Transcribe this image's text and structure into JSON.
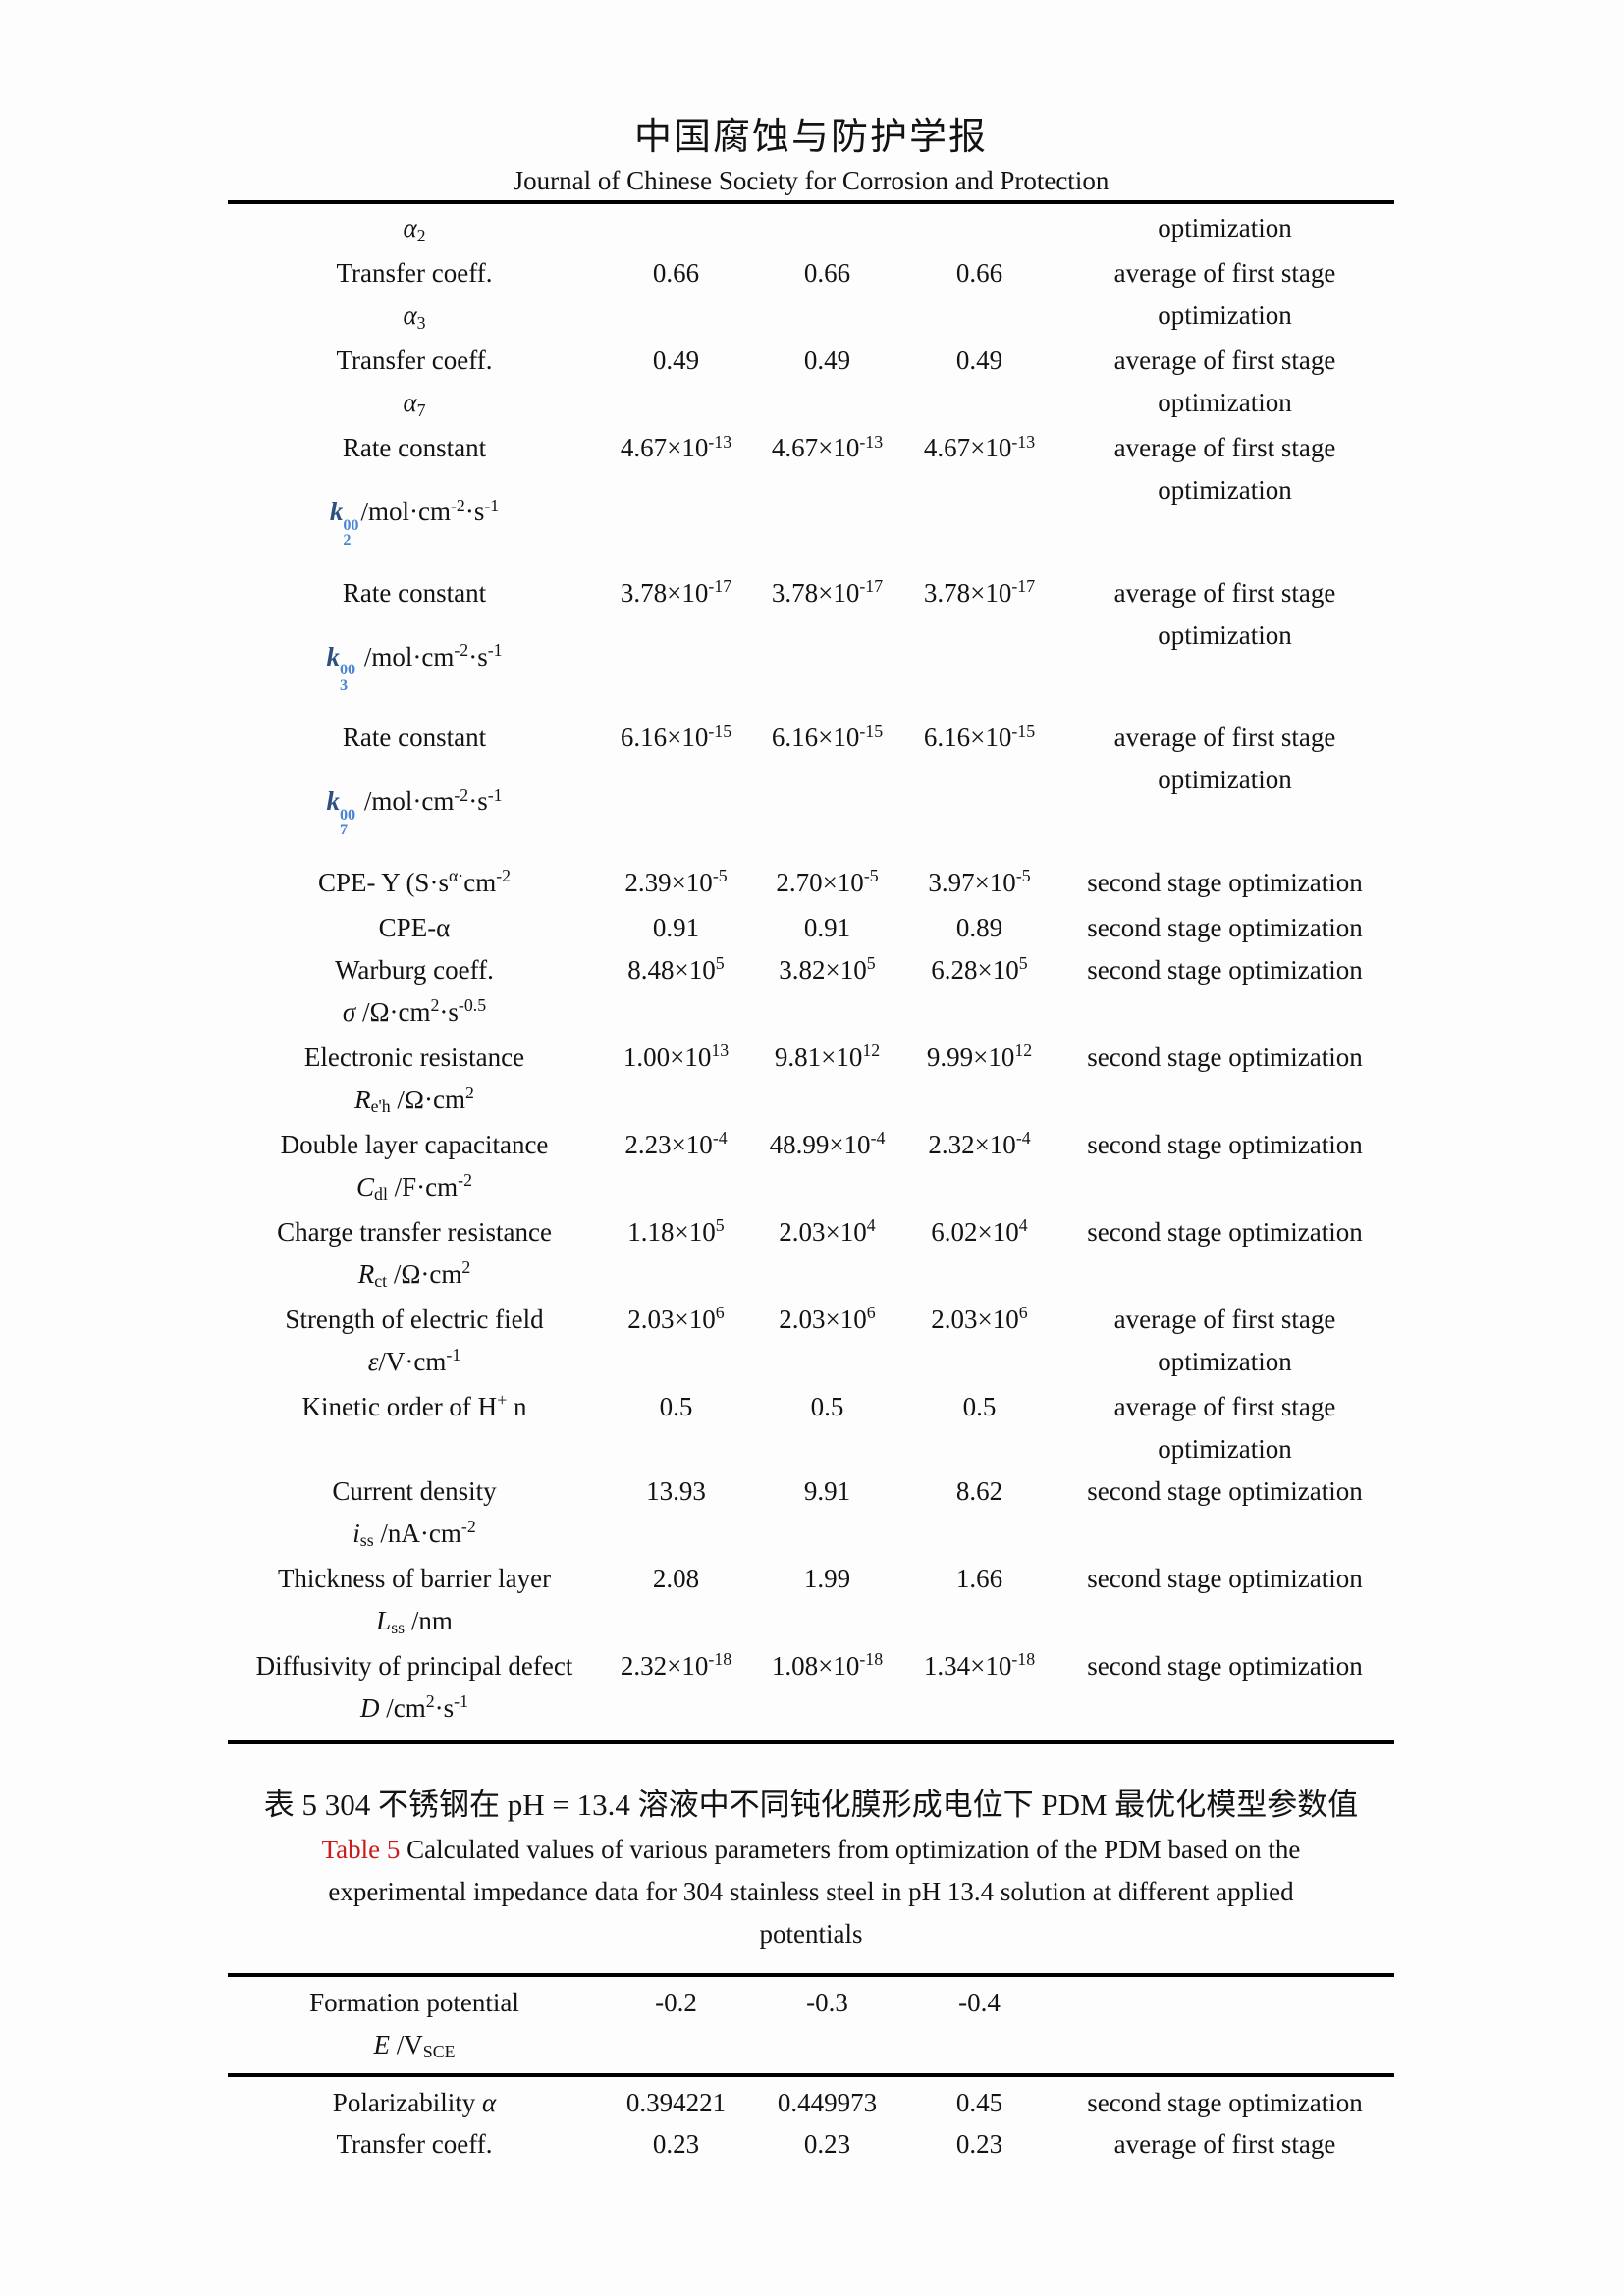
{
  "header": {
    "title_zh": "中国腐蚀与防护学报",
    "title_en": "Journal of Chinese Society for Corrosion and Protection"
  },
  "table1": {
    "carryover": {
      "name": [
        [
          "α",
          "gi"
        ],
        [
          "2",
          "sub"
        ]
      ],
      "desc": "optimization"
    },
    "rows": [
      {
        "name1": [
          [
            "Transfer coeff.",
            ""
          ]
        ],
        "name2": [
          [
            "α",
            "gi"
          ],
          [
            "3",
            "sub"
          ]
        ],
        "v1": [
          [
            "0.66",
            ""
          ]
        ],
        "v2": [
          [
            "0.66",
            ""
          ]
        ],
        "v3": [
          [
            "0.66",
            ""
          ]
        ],
        "desc": "average of first stage optimization"
      },
      {
        "name1": [
          [
            "Transfer coeff.",
            ""
          ]
        ],
        "name2": [
          [
            "α",
            "gi"
          ],
          [
            "7",
            "sub"
          ]
        ],
        "v1": [
          [
            "0.49",
            ""
          ]
        ],
        "v2": [
          [
            "0.49",
            ""
          ]
        ],
        "v3": [
          [
            "0.49",
            ""
          ]
        ],
        "desc": "average of first stage optimization"
      },
      {
        "name1": [
          [
            "Rate constant",
            ""
          ]
        ],
        "name2": [
          [
            "k",
            "kb"
          ],
          [
            "00|2",
            "stk"
          ],
          [
            "/mol·cm",
            ""
          ],
          [
            "-2",
            "sup"
          ],
          [
            "·s",
            ""
          ],
          [
            "-1",
            "sup"
          ]
        ],
        "v1": [
          [
            "4.67×10",
            ""
          ],
          [
            "-13",
            "sup"
          ]
        ],
        "v2": [
          [
            "4.67×10",
            ""
          ],
          [
            "-13",
            "sup"
          ]
        ],
        "v3": [
          [
            "4.67×10",
            ""
          ],
          [
            "-13",
            "sup"
          ]
        ],
        "desc": "average of first stage optimization"
      },
      {
        "name1": [
          [
            "Rate constant",
            ""
          ]
        ],
        "name2": [
          [
            "k",
            "kb"
          ],
          [
            "00|3",
            "stk"
          ],
          [
            " /mol·cm",
            ""
          ],
          [
            "-2",
            "sup"
          ],
          [
            "·s",
            ""
          ],
          [
            "-1",
            "sup"
          ]
        ],
        "v1": [
          [
            "3.78×10",
            ""
          ],
          [
            "-17",
            "sup"
          ]
        ],
        "v2": [
          [
            "3.78×10",
            ""
          ],
          [
            "-17",
            "sup"
          ]
        ],
        "v3": [
          [
            "3.78×10",
            ""
          ],
          [
            "-17",
            "sup"
          ]
        ],
        "desc": "average of first stage optimization"
      },
      {
        "name1": [
          [
            "Rate constant",
            ""
          ]
        ],
        "name2": [
          [
            "k",
            "kb"
          ],
          [
            "00|7",
            "stk"
          ],
          [
            " /mol·cm",
            ""
          ],
          [
            "-2",
            "sup"
          ],
          [
            "·s",
            ""
          ],
          [
            "-1",
            "sup"
          ]
        ],
        "v1": [
          [
            "6.16×10",
            ""
          ],
          [
            "-15",
            "sup"
          ]
        ],
        "v2": [
          [
            "6.16×10",
            ""
          ],
          [
            "-15",
            "sup"
          ]
        ],
        "v3": [
          [
            "6.16×10",
            ""
          ],
          [
            "-15",
            "sup"
          ]
        ],
        "desc": "average of first stage optimization"
      },
      {
        "name1": [
          [
            "CPE- Y (S·s",
            ""
          ],
          [
            "α·",
            "sup"
          ],
          [
            "cm",
            ""
          ],
          [
            "-2",
            "sup"
          ]
        ],
        "v1": [
          [
            "2.39×10",
            ""
          ],
          [
            "-5",
            "sup"
          ]
        ],
        "v2": [
          [
            "2.70×10",
            ""
          ],
          [
            "-5",
            "sup"
          ]
        ],
        "v3": [
          [
            "3.97×10",
            ""
          ],
          [
            "-5",
            "sup"
          ]
        ],
        "desc": "second stage optimization"
      },
      {
        "name1": [
          [
            "CPE-α",
            ""
          ]
        ],
        "v1": [
          [
            "0.91",
            ""
          ]
        ],
        "v2": [
          [
            "0.91",
            ""
          ]
        ],
        "v3": [
          [
            "0.89",
            ""
          ]
        ],
        "desc": "second stage optimization"
      },
      {
        "name1": [
          [
            "Warburg coeff.",
            ""
          ]
        ],
        "name2": [
          [
            "σ",
            "gi"
          ],
          [
            " /Ω·cm",
            ""
          ],
          [
            "2",
            "sup"
          ],
          [
            "·s",
            ""
          ],
          [
            "-0.5",
            "sup"
          ]
        ],
        "v1": [
          [
            "8.48×10",
            ""
          ],
          [
            "5",
            "sup"
          ]
        ],
        "v2": [
          [
            "3.82×10",
            ""
          ],
          [
            "5",
            "sup"
          ]
        ],
        "v3": [
          [
            "6.28×10",
            ""
          ],
          [
            "5",
            "sup"
          ]
        ],
        "desc": "second stage optimization"
      },
      {
        "name1": [
          [
            "Electronic resistance",
            ""
          ]
        ],
        "name2": [
          [
            "R",
            "i"
          ],
          [
            "e'h",
            "sub"
          ],
          [
            " /Ω·cm",
            ""
          ],
          [
            "2",
            "sup"
          ]
        ],
        "v1": [
          [
            "1.00×10",
            ""
          ],
          [
            "13",
            "sup"
          ]
        ],
        "v2": [
          [
            "9.81×10",
            ""
          ],
          [
            "12",
            "sup"
          ]
        ],
        "v3": [
          [
            "9.99×10",
            ""
          ],
          [
            "12",
            "sup"
          ]
        ],
        "desc": "second stage optimization"
      },
      {
        "name1": [
          [
            "Double layer capacitance",
            ""
          ]
        ],
        "name2": [
          [
            "C",
            "i"
          ],
          [
            "dl",
            "sub"
          ],
          [
            " /F·cm",
            ""
          ],
          [
            "-2",
            "sup"
          ]
        ],
        "v1": [
          [
            "2.23×10",
            ""
          ],
          [
            "-4",
            "sup"
          ]
        ],
        "v2": [
          [
            "48.99×10",
            ""
          ],
          [
            "-4",
            "sup"
          ]
        ],
        "v3": [
          [
            "2.32×10",
            ""
          ],
          [
            "-4",
            "sup"
          ]
        ],
        "desc": "second stage optimization"
      },
      {
        "name1": [
          [
            "Charge transfer resistance",
            ""
          ]
        ],
        "name2": [
          [
            "R",
            "i"
          ],
          [
            "ct",
            "sub"
          ],
          [
            " /Ω·cm",
            ""
          ],
          [
            "2",
            "sup"
          ]
        ],
        "v1": [
          [
            "1.18×10",
            ""
          ],
          [
            "5",
            "sup"
          ]
        ],
        "v2": [
          [
            "2.03×10",
            ""
          ],
          [
            "4",
            "sup"
          ]
        ],
        "v3": [
          [
            "6.02×10",
            ""
          ],
          [
            "4",
            "sup"
          ]
        ],
        "desc": "second stage optimization"
      },
      {
        "name1": [
          [
            "Strength of electric field",
            ""
          ]
        ],
        "name2": [
          [
            "ε",
            "gi"
          ],
          [
            "/V·cm",
            ""
          ],
          [
            "-1",
            "sup"
          ]
        ],
        "v1": [
          [
            "2.03×10",
            ""
          ],
          [
            "6",
            "sup"
          ]
        ],
        "v2": [
          [
            "2.03×10",
            ""
          ],
          [
            "6",
            "sup"
          ]
        ],
        "v3": [
          [
            "2.03×10",
            ""
          ],
          [
            "6",
            "sup"
          ]
        ],
        "desc": "average of first stage optimization"
      },
      {
        "name1": [
          [
            "Kinetic order of H",
            ""
          ],
          [
            "+",
            "sup"
          ],
          [
            " n",
            ""
          ]
        ],
        "v1": [
          [
            "0.5",
            ""
          ]
        ],
        "v2": [
          [
            "0.5",
            ""
          ]
        ],
        "v3": [
          [
            "0.5",
            ""
          ]
        ],
        "desc": "average of first stage optimization"
      },
      {
        "name1": [
          [
            "Current density",
            ""
          ]
        ],
        "name2": [
          [
            "i",
            "i"
          ],
          [
            "ss",
            "sub"
          ],
          [
            " /nA·cm",
            ""
          ],
          [
            "-2",
            "sup"
          ]
        ],
        "v1": [
          [
            "13.93",
            ""
          ]
        ],
        "v2": [
          [
            "9.91",
            ""
          ]
        ],
        "v3": [
          [
            "8.62",
            ""
          ]
        ],
        "desc": "second stage optimization"
      },
      {
        "name1": [
          [
            "Thickness of barrier layer",
            ""
          ]
        ],
        "name2": [
          [
            "L",
            "i"
          ],
          [
            "ss",
            "sub"
          ],
          [
            " /nm",
            ""
          ]
        ],
        "v1": [
          [
            "2.08",
            ""
          ]
        ],
        "v2": [
          [
            "1.99",
            ""
          ]
        ],
        "v3": [
          [
            "1.66",
            ""
          ]
        ],
        "desc": "second stage optimization"
      },
      {
        "name1": [
          [
            "Diffusivity of principal defect",
            ""
          ]
        ],
        "name2": [
          [
            "D",
            "i"
          ],
          [
            " /cm",
            ""
          ],
          [
            "2",
            "sup"
          ],
          [
            "·s",
            ""
          ],
          [
            "-1",
            "sup"
          ]
        ],
        "v1": [
          [
            "2.32×10",
            ""
          ],
          [
            "-18",
            "sup"
          ]
        ],
        "v2": [
          [
            "1.08×10",
            ""
          ],
          [
            "-18",
            "sup"
          ]
        ],
        "v3": [
          [
            "1.34×10",
            ""
          ],
          [
            "-18",
            "sup"
          ]
        ],
        "desc": "second stage optimization"
      }
    ]
  },
  "caption": {
    "zh": "表 5 304 不锈钢在 pH = 13.4 溶液中不同钝化膜形成电位下 PDM 最优化模型参数值",
    "label": "Table 5",
    "en": " Calculated values of various parameters from optimization of the PDM based on the experimental impedance data for 304 stainless steel in pH 13.4 solution at different applied potentials"
  },
  "table2": {
    "header": {
      "name1": [
        [
          "Formation potential",
          ""
        ]
      ],
      "name2": [
        [
          "E",
          "i"
        ],
        [
          " /V",
          ""
        ],
        [
          "SCE",
          "sub"
        ]
      ],
      "v1": [
        [
          "-0.2",
          ""
        ]
      ],
      "v2": [
        [
          "-0.3",
          ""
        ]
      ],
      "v3": [
        [
          "-0.4",
          ""
        ]
      ],
      "desc": ""
    },
    "rows": [
      {
        "name1": [
          [
            "Polarizability ",
            ""
          ],
          [
            "α",
            "gi"
          ]
        ],
        "v1": [
          [
            "0.394221",
            ""
          ]
        ],
        "v2": [
          [
            "0.449973",
            ""
          ]
        ],
        "v3": [
          [
            "0.45",
            ""
          ]
        ],
        "desc": "second stage optimization"
      },
      {
        "name1": [
          [
            "Transfer coeff.",
            ""
          ]
        ],
        "v1": [
          [
            "0.23",
            ""
          ]
        ],
        "v2": [
          [
            "0.23",
            ""
          ]
        ],
        "v3": [
          [
            "0.23",
            ""
          ]
        ],
        "desc": "average of first stage"
      }
    ]
  },
  "colors": {
    "table_label_red": "#cc1a1a",
    "formula_blue": "#4a84d4",
    "formula_k_blue": "#2f4f7f"
  }
}
